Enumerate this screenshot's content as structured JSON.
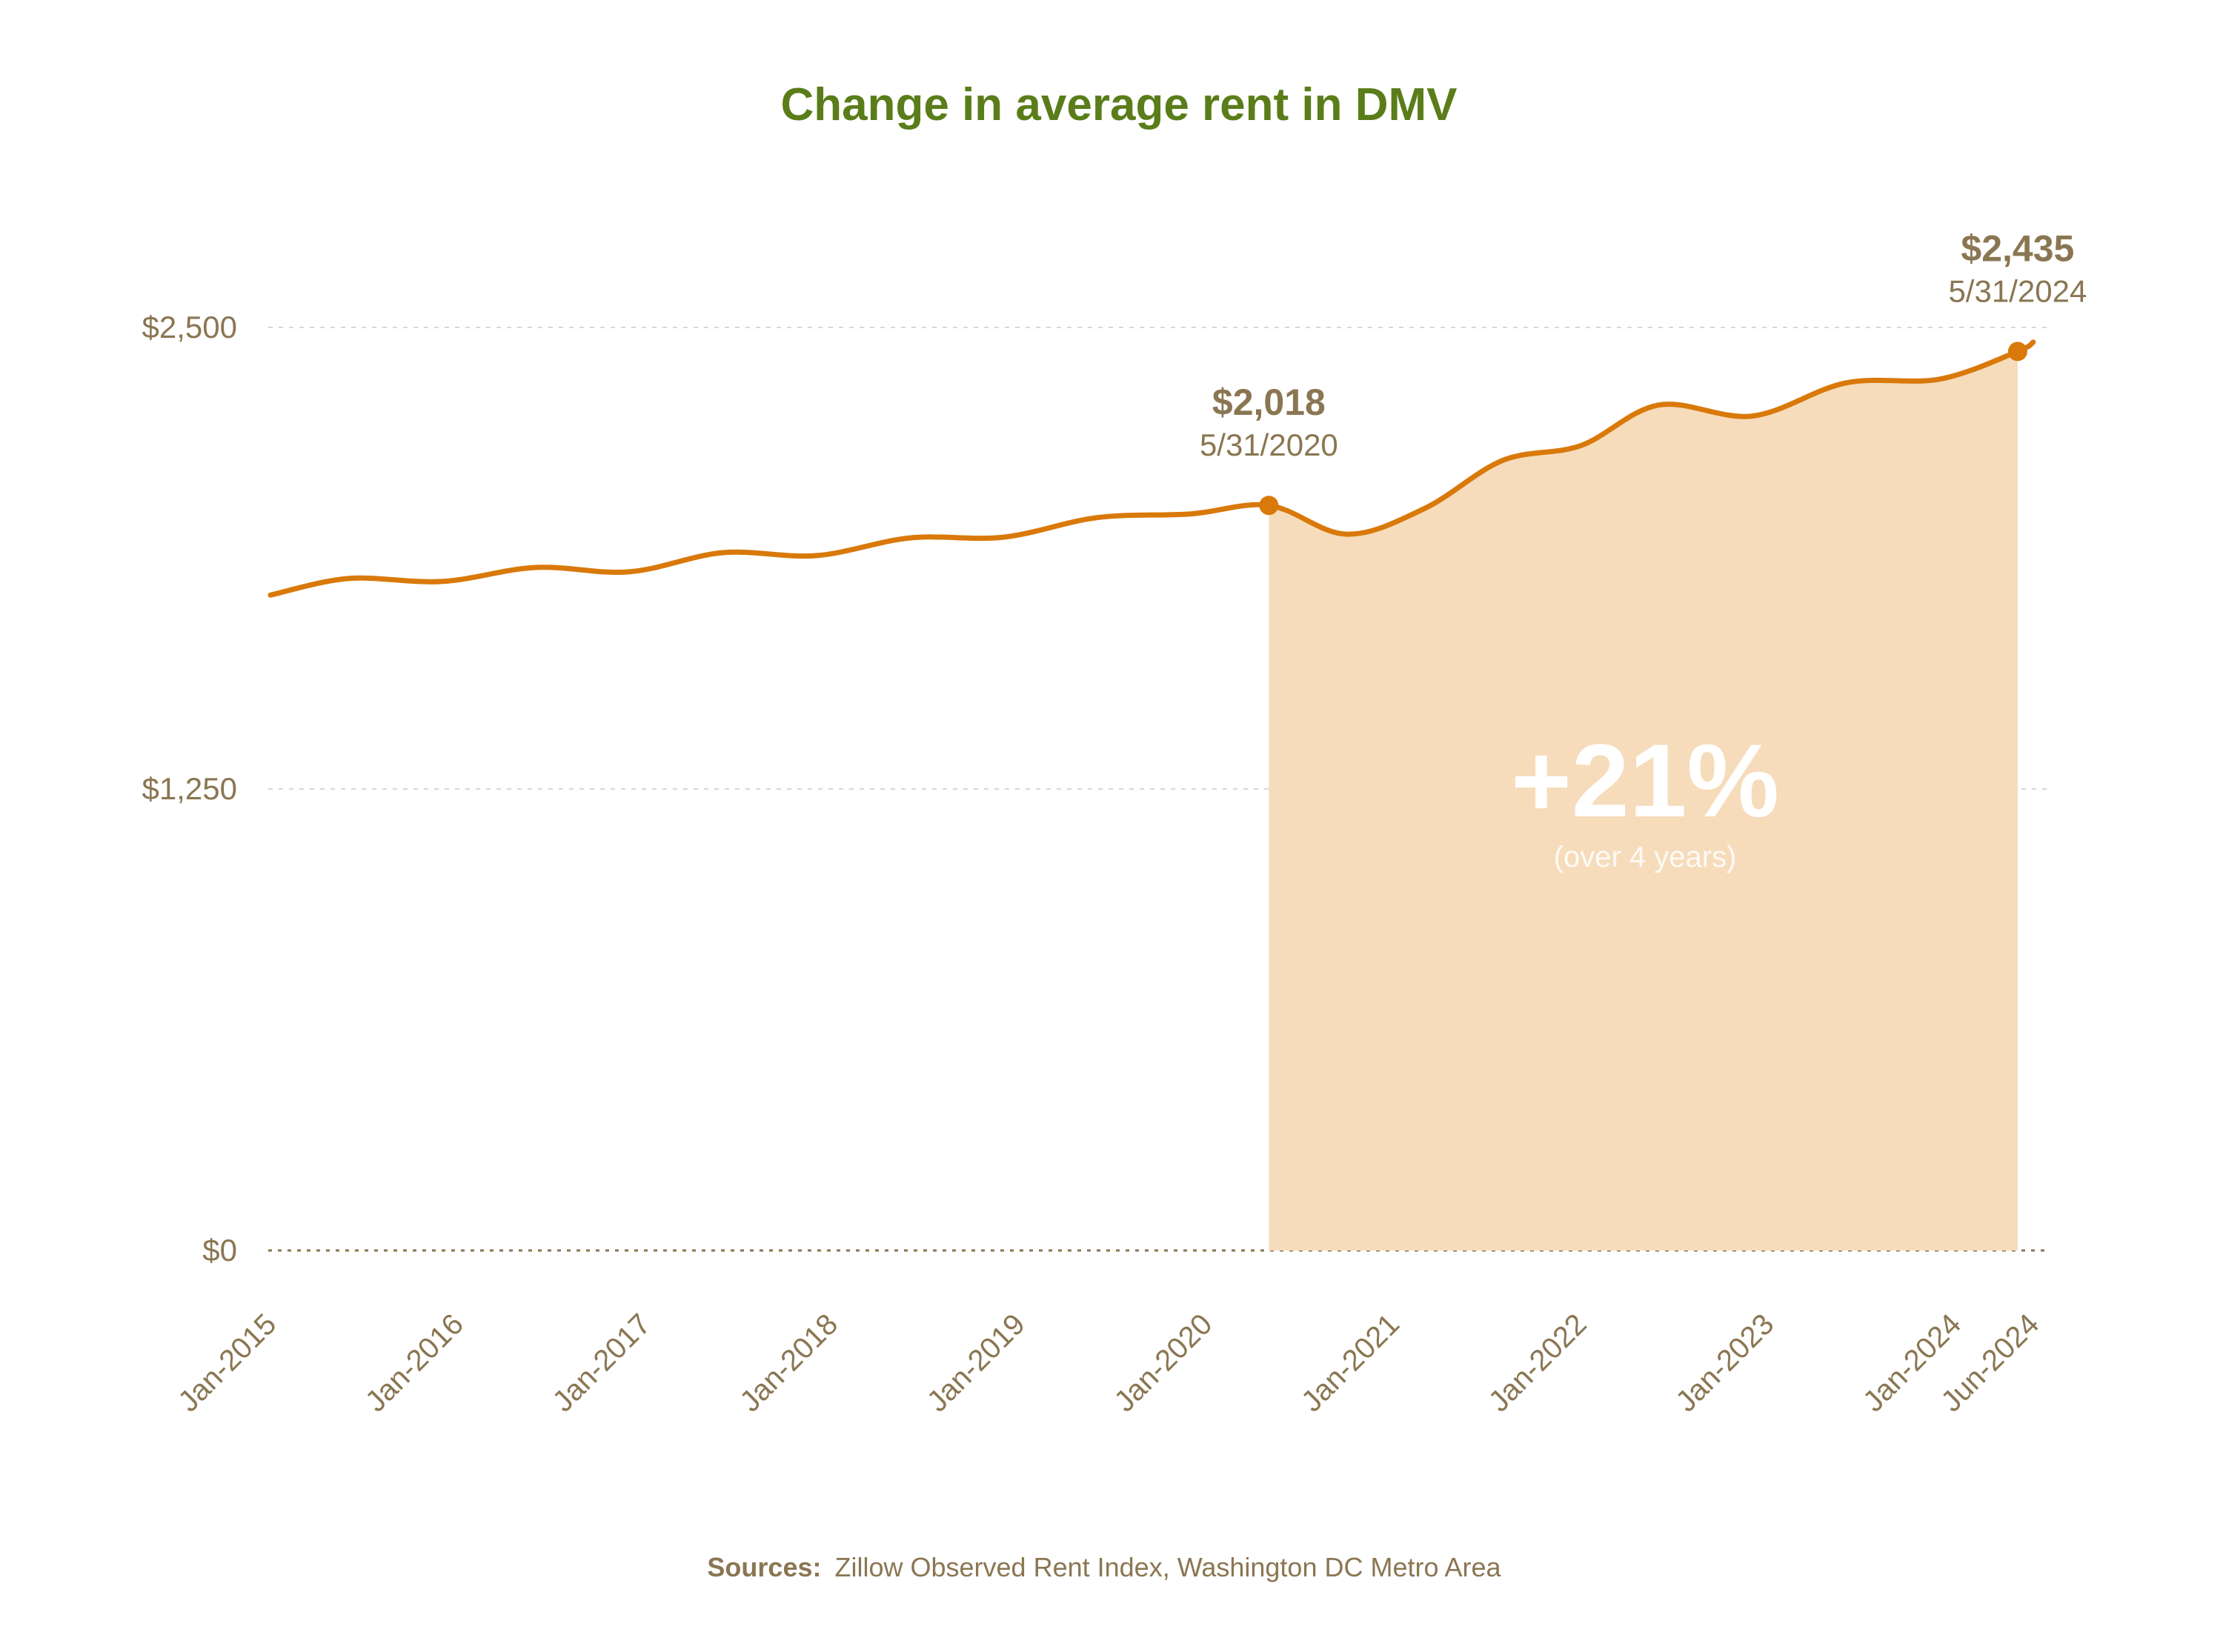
{
  "colors": {
    "title": "#5a7d1a",
    "text": "#8a7652",
    "line": "#d9790a",
    "fill": "#f6dcbb",
    "grid": "#d9d6cf",
    "baseline": "#8a7652",
    "pct_text": "#ffffff"
  },
  "source": {
    "label": "Sources:",
    "text": "Zillow Observed Rent Index, Washington DC Metro Area"
  },
  "chart_data": {
    "type": "line",
    "title": "Change in average rent in DMV",
    "xlabel": "",
    "ylabel": "",
    "ylim": [
      0,
      2500
    ],
    "y_ticks": [
      {
        "value": 0,
        "label": "$0"
      },
      {
        "value": 1250,
        "label": "$1,250"
      },
      {
        "value": 2500,
        "label": "$2,500"
      }
    ],
    "x_ticks": [
      {
        "date": "2015-01",
        "label": "Jan-2015"
      },
      {
        "date": "2016-01",
        "label": "Jan-2016"
      },
      {
        "date": "2017-01",
        "label": "Jan-2017"
      },
      {
        "date": "2018-01",
        "label": "Jan-2018"
      },
      {
        "date": "2019-01",
        "label": "Jan-2019"
      },
      {
        "date": "2020-01",
        "label": "Jan-2020"
      },
      {
        "date": "2021-01",
        "label": "Jan-2021"
      },
      {
        "date": "2022-01",
        "label": "Jan-2022"
      },
      {
        "date": "2023-01",
        "label": "Jan-2023"
      },
      {
        "date": "2024-01",
        "label": "Jan-2024"
      },
      {
        "date": "2024-06",
        "label": "Jun-2024"
      }
    ],
    "grid": true,
    "series": [
      {
        "x": [
          "2015-01",
          "2015-06",
          "2015-12",
          "2016-06",
          "2016-12",
          "2017-06",
          "2017-12",
          "2018-06",
          "2018-12",
          "2019-06",
          "2019-12",
          "2020-05",
          "2020-10",
          "2021-03",
          "2021-08",
          "2022-01",
          "2022-06",
          "2022-12",
          "2023-06",
          "2023-12",
          "2024-05",
          "2024-06"
        ],
        "values": [
          1775,
          1820,
          1812,
          1850,
          1838,
          1890,
          1882,
          1930,
          1932,
          1985,
          1995,
          2018,
          1940,
          2010,
          2140,
          2180,
          2290,
          2260,
          2350,
          2360,
          2435,
          2460
        ]
      }
    ],
    "highlight": {
      "start": {
        "x": "2020-05",
        "value": 2018,
        "value_label": "$2,018",
        "date_label": "5/31/2020"
      },
      "end": {
        "x": "2024-05",
        "value": 2435,
        "value_label": "$2,435",
        "date_label": "5/31/2024"
      },
      "change_label": "+21%",
      "change_sub": "(over 4 years)"
    }
  }
}
